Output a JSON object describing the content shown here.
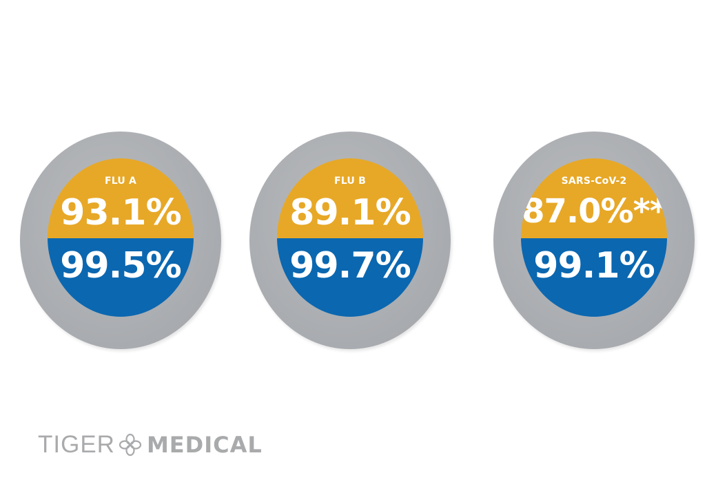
{
  "badges": [
    {
      "label": "FLU A",
      "upper_value": "93.1%",
      "lower_value": "99.5%"
    },
    {
      "label": "FLU B",
      "upper_value": "89.1%",
      "lower_value": "99.7%"
    },
    {
      "label": "SARS-CoV-2",
      "upper_value": "87.0%**",
      "lower_value": "99.1%"
    }
  ],
  "colors": {
    "ring": "#a8abaf",
    "upper": "#e7a827",
    "lower": "#0b67b0",
    "logo": "#a9aaac"
  },
  "logo": {
    "word1": "TIGER",
    "word2": "MEDICAL",
    "icon": "tiger-medical-emblem-icon"
  }
}
